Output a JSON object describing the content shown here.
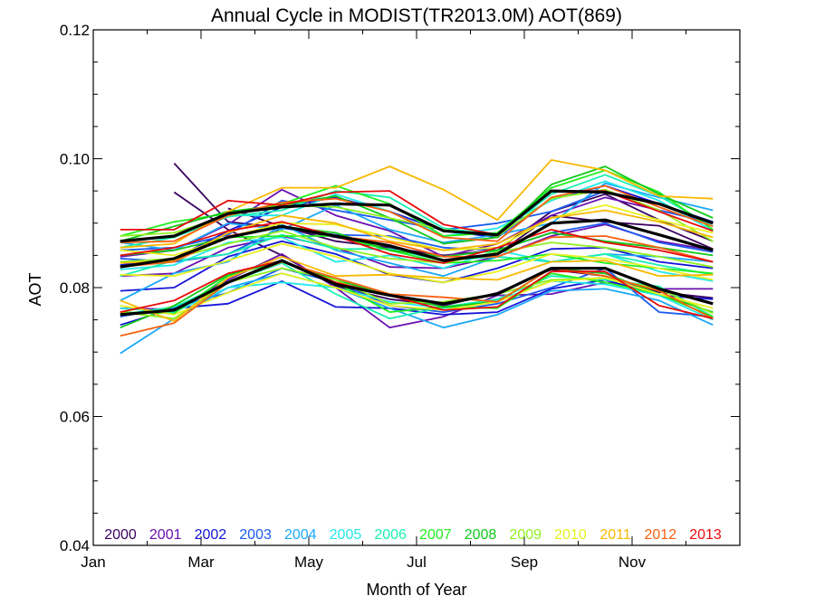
{
  "chart_data": {
    "type": "line",
    "title": "Annual Cycle in MODIST(TR2013.0M) AOT(869)",
    "xlabel": "Month of Year",
    "ylabel": "AOT",
    "xlim": [
      0,
      12
    ],
    "ylim": [
      0.04,
      0.12
    ],
    "x_ticks": [
      {
        "value": 0,
        "label": "Jan"
      },
      {
        "value": 2,
        "label": "Mar"
      },
      {
        "value": 4,
        "label": "May"
      },
      {
        "value": 6,
        "label": "Jul"
      },
      {
        "value": 8,
        "label": "Sep"
      },
      {
        "value": 10,
        "label": "Nov"
      }
    ],
    "y_ticks": [
      {
        "value": 0.04,
        "label": "0.04"
      },
      {
        "value": 0.06,
        "label": "0.06"
      },
      {
        "value": 0.08,
        "label": "0.08"
      },
      {
        "value": 0.1,
        "label": "0.10"
      },
      {
        "value": 0.12,
        "label": "0.12"
      }
    ],
    "x": [
      0.5,
      1.5,
      2.5,
      3.5,
      4.5,
      5.5,
      6.5,
      7.5,
      8.5,
      9.5,
      10.5,
      11.5
    ],
    "grid": false,
    "legend": "bottom",
    "series": [
      {
        "name": "2000",
        "color": "#3a0060",
        "values": [
          null,
          null,
          0.0923,
          0.0895,
          0.0872,
          0.0862,
          0.085,
          0.0858,
          0.0918,
          0.0945,
          0.0905,
          0.0872
        ]
      },
      {
        "name": "2000",
        "color": "#3a0060",
        "values": [
          null,
          0.0993,
          0.0902,
          0.0893,
          0.0878,
          0.0865,
          0.0842,
          0.0852,
          0.0912,
          0.0902,
          0.0896,
          0.086
        ]
      },
      {
        "name": "2000",
        "color": "#3a0060",
        "values": [
          null,
          0.0948,
          0.089,
          0.085,
          0.0802,
          0.0782,
          0.0772,
          0.0792,
          0.0828,
          0.0818,
          0.0793,
          0.0784
        ]
      },
      {
        "name": "2001",
        "color": "#6a10b0",
        "values": [
          0.0848,
          0.0858,
          0.0898,
          0.0952,
          0.0912,
          0.0888,
          0.0848,
          0.0868,
          0.0912,
          0.094,
          0.092,
          0.0902
        ]
      },
      {
        "name": "2001",
        "color": "#6a10b0",
        "values": [
          0.0818,
          0.0822,
          0.0862,
          0.088,
          0.0862,
          0.0832,
          0.083,
          0.0848,
          0.088,
          0.0898,
          0.0872,
          0.0858
        ]
      },
      {
        "name": "2001",
        "color": "#6a10b0",
        "values": [
          0.0768,
          0.0766,
          0.0812,
          0.0852,
          0.08,
          0.0738,
          0.0755,
          0.0788,
          0.079,
          0.0808,
          0.0798,
          0.0798
        ]
      },
      {
        "name": "2002",
        "color": "#1414d8",
        "values": [
          0.0835,
          0.0845,
          0.0888,
          0.0925,
          0.094,
          0.0918,
          0.0888,
          0.0878,
          0.0938,
          0.0958,
          0.093,
          0.0902
        ]
      },
      {
        "name": "2002",
        "color": "#1414d8",
        "values": [
          0.0795,
          0.08,
          0.0848,
          0.0872,
          0.0852,
          0.082,
          0.0808,
          0.083,
          0.086,
          0.0862,
          0.084,
          0.083
        ]
      },
      {
        "name": "2002",
        "color": "#1414d8",
        "values": [
          0.0742,
          0.0768,
          0.0775,
          0.081,
          0.077,
          0.0768,
          0.0758,
          0.0762,
          0.0798,
          0.0812,
          0.0788,
          0.0782
        ]
      },
      {
        "name": "2003",
        "color": "#1a5af0",
        "values": [
          0.0858,
          0.0862,
          0.0882,
          0.0935,
          0.092,
          0.0905,
          0.089,
          0.09,
          0.0918,
          0.095,
          0.092,
          0.09
        ]
      },
      {
        "name": "2003",
        "color": "#1a5af0",
        "values": [
          0.0845,
          0.084,
          0.0852,
          0.0892,
          0.0882,
          0.088,
          0.0862,
          0.0858,
          0.0885,
          0.09,
          0.087,
          0.0855
        ]
      },
      {
        "name": "2003",
        "color": "#1a5af0",
        "values": [
          0.0755,
          0.077,
          0.0792,
          0.083,
          0.0808,
          0.0772,
          0.0762,
          0.0775,
          0.08,
          0.083,
          0.0762,
          0.0755
        ]
      },
      {
        "name": "2004",
        "color": "#1aa8f8",
        "values": [
          0.087,
          0.0858,
          0.09,
          0.089,
          0.0928,
          0.089,
          0.087,
          0.0882,
          0.09,
          0.0962,
          0.094,
          0.092
        ]
      },
      {
        "name": "2004",
        "color": "#1aa8f8",
        "values": [
          0.078,
          0.0822,
          0.084,
          0.0898,
          0.0858,
          0.0838,
          0.0818,
          0.0848,
          0.084,
          0.0852,
          0.0848,
          0.084
        ]
      },
      {
        "name": "2004",
        "color": "#1aa8f8",
        "values": [
          0.0698,
          0.0752,
          0.08,
          0.0822,
          0.08,
          0.0768,
          0.0738,
          0.0758,
          0.0795,
          0.0798,
          0.078,
          0.0742
        ]
      },
      {
        "name": "2005",
        "color": "#22e8ea",
        "values": [
          0.087,
          0.088,
          0.0912,
          0.0912,
          0.0945,
          0.0918,
          0.088,
          0.0892,
          0.0935,
          0.0965,
          0.0935,
          0.0888
        ]
      },
      {
        "name": "2005",
        "color": "#22e8ea",
        "values": [
          0.0828,
          0.0835,
          0.087,
          0.0878,
          0.084,
          0.085,
          0.083,
          0.0858,
          0.084,
          0.0852,
          0.0825,
          0.081
        ]
      },
      {
        "name": "2005",
        "color": "#22e8ea",
        "values": [
          0.0768,
          0.0762,
          0.08,
          0.0808,
          0.08,
          0.0778,
          0.0768,
          0.078,
          0.081,
          0.0805,
          0.0788,
          0.075
        ]
      },
      {
        "name": "2006",
        "color": "#18f0b0",
        "values": [
          0.0862,
          0.0878,
          0.091,
          0.092,
          0.095,
          0.094,
          0.0892,
          0.0882,
          0.0945,
          0.0975,
          0.0942,
          0.0895
        ]
      },
      {
        "name": "2006",
        "color": "#18f0b0",
        "values": [
          0.0818,
          0.0842,
          0.0852,
          0.0882,
          0.086,
          0.086,
          0.0842,
          0.0848,
          0.084,
          0.0852,
          0.0835,
          0.082
        ]
      },
      {
        "name": "2006",
        "color": "#18f0b0",
        "values": [
          0.0758,
          0.077,
          0.0808,
          0.0838,
          0.079,
          0.0752,
          0.077,
          0.0782,
          0.0818,
          0.0812,
          0.0802,
          0.0755
        ]
      },
      {
        "name": "2007",
        "color": "#20f020",
        "values": [
          0.088,
          0.0902,
          0.0915,
          0.093,
          0.0958,
          0.093,
          0.088,
          0.0885,
          0.0955,
          0.0982,
          0.0948,
          0.089
        ]
      },
      {
        "name": "2007",
        "color": "#20f020",
        "values": [
          0.0832,
          0.0842,
          0.0878,
          0.088,
          0.088,
          0.0858,
          0.0838,
          0.0842,
          0.0852,
          0.0838,
          0.083,
          0.0822
        ]
      },
      {
        "name": "2007",
        "color": "#20f020",
        "values": [
          0.0762,
          0.076,
          0.0818,
          0.0842,
          0.0808,
          0.0762,
          0.077,
          0.0768,
          0.0822,
          0.0808,
          0.079,
          0.0755
        ]
      },
      {
        "name": "2008",
        "color": "#10c818",
        "values": [
          0.0872,
          0.0895,
          0.0918,
          0.0928,
          0.0942,
          0.0908,
          0.0868,
          0.0878,
          0.096,
          0.0988,
          0.0945,
          0.0908
        ]
      },
      {
        "name": "2008",
        "color": "#10c818",
        "values": [
          0.085,
          0.0858,
          0.0878,
          0.0895,
          0.0885,
          0.0858,
          0.0848,
          0.0858,
          0.0885,
          0.0872,
          0.0862,
          0.085
        ]
      },
      {
        "name": "2008",
        "color": "#10c818",
        "values": [
          0.0738,
          0.0772,
          0.082,
          0.084,
          0.0812,
          0.0788,
          0.077,
          0.0778,
          0.083,
          0.0822,
          0.079,
          0.0762
        ]
      },
      {
        "name": "2009",
        "color": "#90f020",
        "values": [
          0.088,
          0.0885,
          0.0912,
          0.0928,
          0.0925,
          0.0908,
          0.089,
          0.088,
          0.0938,
          0.0952,
          0.092,
          0.0872
        ]
      },
      {
        "name": "2009",
        "color": "#90f020",
        "values": [
          0.084,
          0.0845,
          0.0868,
          0.0888,
          0.0862,
          0.0845,
          0.0838,
          0.0855,
          0.087,
          0.0862,
          0.0848,
          0.0832
        ]
      },
      {
        "name": "2009",
        "color": "#90f020",
        "values": [
          0.0762,
          0.0752,
          0.0808,
          0.083,
          0.0812,
          0.0775,
          0.0778,
          0.079,
          0.0812,
          0.0815,
          0.0798,
          0.076
        ]
      },
      {
        "name": "2010",
        "color": "#e8f020",
        "values": [
          0.0858,
          0.085,
          0.0878,
          0.09,
          0.0898,
          0.0878,
          0.0858,
          0.0862,
          0.0908,
          0.0928,
          0.0905,
          0.0885
        ]
      },
      {
        "name": "2010",
        "color": "#e8f020",
        "values": [
          0.082,
          0.0818,
          0.0842,
          0.0868,
          0.0848,
          0.0822,
          0.0808,
          0.0825,
          0.0852,
          0.0845,
          0.083,
          0.0812
        ]
      },
      {
        "name": "2010",
        "color": "#e8f020",
        "values": [
          0.0772,
          0.0758,
          0.0792,
          0.0822,
          0.08,
          0.0772,
          0.0765,
          0.0778,
          0.081,
          0.0815,
          0.079,
          0.0768
        ]
      },
      {
        "name": "2011",
        "color": "#f8b800",
        "values": [
          0.0862,
          0.0868,
          0.0918,
          0.0955,
          0.0955,
          0.0988,
          0.0952,
          0.0905,
          0.0998,
          0.0982,
          0.0942,
          0.0938
        ]
      },
      {
        "name": "2011",
        "color": "#f8b800",
        "values": [
          0.0838,
          0.0842,
          0.0885,
          0.0912,
          0.09,
          0.0872,
          0.0858,
          0.0868,
          0.0908,
          0.092,
          0.0902,
          0.0878
        ]
      },
      {
        "name": "2011",
        "color": "#f8b800",
        "values": [
          0.078,
          0.0748,
          0.0815,
          0.0848,
          0.0818,
          0.082,
          0.0815,
          0.0812,
          0.084,
          0.0842,
          0.0818,
          0.082
        ]
      },
      {
        "name": "2012",
        "color": "#f86010",
        "values": [
          0.087,
          0.0872,
          0.0912,
          0.0932,
          0.0938,
          0.0918,
          0.0878,
          0.0872,
          0.094,
          0.0958,
          0.0925,
          0.0895
        ]
      },
      {
        "name": "2012",
        "color": "#f86010",
        "values": [
          0.0832,
          0.084,
          0.088,
          0.0895,
          0.088,
          0.087,
          0.0848,
          0.0848,
          0.0878,
          0.088,
          0.0862,
          0.084
        ]
      },
      {
        "name": "2012",
        "color": "#f86010",
        "values": [
          0.0725,
          0.0745,
          0.0808,
          0.084,
          0.0815,
          0.079,
          0.0785,
          0.0778,
          0.083,
          0.0818,
          0.0795,
          0.0752
        ]
      },
      {
        "name": "2013",
        "color": "#e80a0a",
        "values": [
          0.089,
          0.089,
          0.0935,
          0.0928,
          0.0948,
          0.095,
          0.0898,
          0.0882,
          0.095,
          0.095,
          0.0918,
          0.0888
        ]
      },
      {
        "name": "2013",
        "color": "#e80a0a",
        "values": [
          0.085,
          0.0862,
          0.0888,
          0.0902,
          0.088,
          0.0852,
          0.0838,
          0.0862,
          0.089,
          0.087,
          0.0858,
          0.084
        ]
      },
      {
        "name": "2013",
        "color": "#e80a0a",
        "values": [
          0.0762,
          0.078,
          0.0822,
          0.0842,
          0.0808,
          0.0788,
          0.0765,
          0.077,
          0.0825,
          0.0825,
          0.0772,
          0.0752
        ]
      }
    ],
    "average_series": [
      {
        "color": "#000000",
        "values": [
          0.0872,
          0.088,
          0.0915,
          0.0925,
          0.093,
          0.0928,
          0.0888,
          0.0882,
          0.095,
          0.0948,
          0.093,
          0.09
        ]
      },
      {
        "color": "#000000",
        "values": [
          0.0832,
          0.0845,
          0.0878,
          0.0895,
          0.088,
          0.0865,
          0.0842,
          0.0852,
          0.09,
          0.0905,
          0.0882,
          0.0858
        ]
      },
      {
        "color": "#000000",
        "values": [
          0.0758,
          0.0765,
          0.0808,
          0.0842,
          0.0805,
          0.0788,
          0.0775,
          0.079,
          0.083,
          0.083,
          0.0798,
          0.0775
        ]
      }
    ],
    "legend_entries": [
      {
        "label": "2000",
        "color": "#3a0060"
      },
      {
        "label": "2001",
        "color": "#6a10b0"
      },
      {
        "label": "2002",
        "color": "#1414d8"
      },
      {
        "label": "2003",
        "color": "#1a5af0"
      },
      {
        "label": "2004",
        "color": "#1aa8f8"
      },
      {
        "label": "2005",
        "color": "#22e8ea"
      },
      {
        "label": "2006",
        "color": "#18f0b0"
      },
      {
        "label": "2007",
        "color": "#20f020"
      },
      {
        "label": "2008",
        "color": "#10c818"
      },
      {
        "label": "2009",
        "color": "#90f020"
      },
      {
        "label": "2010",
        "color": "#e8f020"
      },
      {
        "label": "2011",
        "color": "#f8b800"
      },
      {
        "label": "2012",
        "color": "#f86010"
      },
      {
        "label": "2013",
        "color": "#e80a0a"
      }
    ]
  }
}
